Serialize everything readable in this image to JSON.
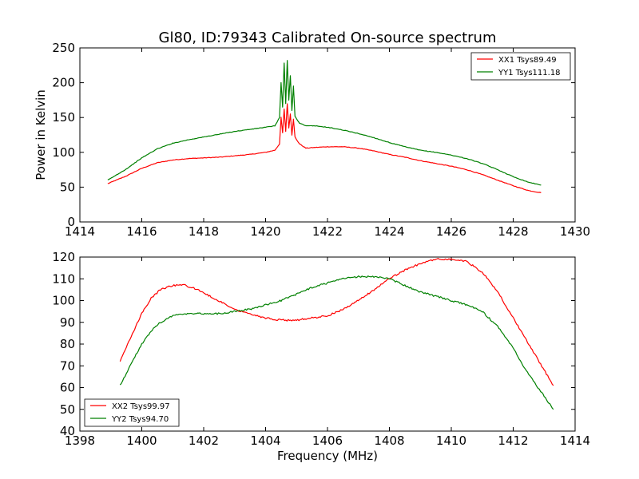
{
  "chart_data": [
    {
      "type": "line",
      "title": "Gl80, ID:79343 Calibrated On-source spectrum",
      "xlabel": "",
      "ylabel": "Power in Kelvin",
      "xlim": [
        1414,
        1430
      ],
      "ylim": [
        0,
        250
      ],
      "xticks": [
        1414,
        1416,
        1418,
        1420,
        1422,
        1424,
        1426,
        1428,
        1430
      ],
      "yticks": [
        0,
        50,
        100,
        150,
        200,
        250
      ],
      "legend_position": "top-right",
      "series": [
        {
          "name": "XX1 Tsys89.49",
          "color": "#ff0000",
          "x": [
            1414.9,
            1415.5,
            1416.0,
            1416.5,
            1417.0,
            1417.5,
            1418.0,
            1418.5,
            1419.0,
            1419.5,
            1420.0,
            1420.3,
            1420.45,
            1420.5,
            1420.55,
            1420.6,
            1420.65,
            1420.7,
            1420.75,
            1420.8,
            1420.85,
            1420.9,
            1420.95,
            1421.0,
            1421.1,
            1421.3,
            1421.6,
            1422.0,
            1422.5,
            1423.0,
            1423.5,
            1424.0,
            1424.5,
            1425.0,
            1425.5,
            1426.0,
            1426.5,
            1427.0,
            1427.5,
            1428.0,
            1428.5,
            1428.9
          ],
          "values": [
            55,
            66,
            77,
            85,
            89,
            91,
            92,
            93,
            95,
            97,
            100,
            103,
            112,
            150,
            128,
            162,
            130,
            170,
            135,
            155,
            125,
            148,
            122,
            118,
            112,
            106,
            107,
            108,
            108,
            106,
            102,
            97,
            93,
            88,
            84,
            80,
            75,
            68,
            60,
            52,
            45,
            42
          ]
        },
        {
          "name": "YY1 Tsys111.18",
          "color": "#008000",
          "x": [
            1414.9,
            1415.5,
            1416.0,
            1416.5,
            1417.0,
            1417.5,
            1418.0,
            1418.5,
            1419.0,
            1419.5,
            1420.0,
            1420.3,
            1420.45,
            1420.5,
            1420.55,
            1420.6,
            1420.65,
            1420.7,
            1420.75,
            1420.8,
            1420.85,
            1420.9,
            1420.95,
            1421.0,
            1421.1,
            1421.3,
            1421.6,
            1422.0,
            1422.5,
            1423.0,
            1423.5,
            1424.0,
            1424.5,
            1425.0,
            1425.5,
            1426.0,
            1426.5,
            1427.0,
            1427.5,
            1428.0,
            1428.5,
            1428.9
          ],
          "values": [
            60,
            76,
            92,
            105,
            113,
            118,
            122,
            126,
            130,
            133,
            136,
            138,
            150,
            200,
            165,
            228,
            170,
            232,
            175,
            210,
            160,
            195,
            152,
            148,
            142,
            138,
            138,
            136,
            132,
            127,
            121,
            114,
            108,
            103,
            100,
            96,
            91,
            84,
            75,
            65,
            57,
            53
          ]
        }
      ]
    },
    {
      "type": "line",
      "title": "",
      "xlabel": "Frequency (MHz)",
      "ylabel": "",
      "xlim": [
        1398,
        1414
      ],
      "ylim": [
        40,
        120
      ],
      "xticks": [
        1398,
        1400,
        1402,
        1404,
        1406,
        1408,
        1410,
        1412,
        1414
      ],
      "yticks": [
        40,
        50,
        60,
        70,
        80,
        90,
        100,
        110,
        120
      ],
      "legend_position": "bottom-left",
      "series": [
        {
          "name": "XX2 Tsys99.97",
          "color": "#ff0000",
          "x": [
            1399.3,
            1399.7,
            1400.0,
            1400.3,
            1400.6,
            1401.0,
            1401.4,
            1401.8,
            1402.2,
            1402.6,
            1403.0,
            1403.5,
            1404.0,
            1404.5,
            1405.0,
            1405.5,
            1406.0,
            1406.5,
            1407.0,
            1407.5,
            1408.0,
            1408.5,
            1409.0,
            1409.5,
            1410.0,
            1410.5,
            1411.0,
            1411.5,
            1412.0,
            1412.5,
            1413.0,
            1413.3
          ],
          "values": [
            72,
            85,
            94,
            101,
            105,
            107,
            107,
            105,
            102,
            99,
            96,
            94,
            92,
            91,
            91,
            92,
            93,
            96,
            100,
            105,
            110,
            114,
            117,
            119,
            119,
            118,
            113,
            104,
            92,
            80,
            68,
            61
          ]
        },
        {
          "name": "YY2 Tsys94.70",
          "color": "#008000",
          "x": [
            1399.3,
            1399.7,
            1400.0,
            1400.3,
            1400.6,
            1401.0,
            1401.4,
            1401.8,
            1402.2,
            1402.6,
            1403.0,
            1403.5,
            1404.0,
            1404.5,
            1405.0,
            1405.5,
            1406.0,
            1406.5,
            1407.0,
            1407.5,
            1408.0,
            1408.5,
            1409.0,
            1409.5,
            1410.0,
            1410.5,
            1411.0,
            1411.5,
            1412.0,
            1412.5,
            1413.0,
            1413.3
          ],
          "values": [
            61,
            72,
            80,
            86,
            90,
            93,
            94,
            94,
            94,
            94,
            95,
            96,
            98,
            100,
            103,
            106,
            108,
            110,
            111,
            111,
            110,
            107,
            104,
            102,
            100,
            98,
            95,
            88,
            78,
            66,
            56,
            50
          ]
        }
      ]
    }
  ]
}
